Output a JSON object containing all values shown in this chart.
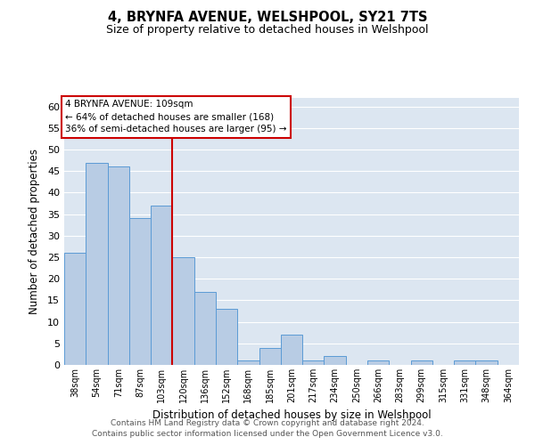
{
  "title": "4, BRYNFA AVENUE, WELSHPOOL, SY21 7TS",
  "subtitle": "Size of property relative to detached houses in Welshpool",
  "xlabel": "Distribution of detached houses by size in Welshpool",
  "ylabel": "Number of detached properties",
  "categories": [
    "38sqm",
    "54sqm",
    "71sqm",
    "87sqm",
    "103sqm",
    "120sqm",
    "136sqm",
    "152sqm",
    "168sqm",
    "185sqm",
    "201sqm",
    "217sqm",
    "234sqm",
    "250sqm",
    "266sqm",
    "283sqm",
    "299sqm",
    "315sqm",
    "331sqm",
    "348sqm",
    "364sqm"
  ],
  "values": [
    26,
    47,
    46,
    34,
    37,
    25,
    17,
    13,
    1,
    4,
    7,
    1,
    2,
    0,
    1,
    0,
    1,
    0,
    1,
    1,
    0
  ],
  "bar_color": "#b8cce4",
  "bar_edge_color": "#5b9bd5",
  "background_color": "#ffffff",
  "plot_bg_color": "#dce6f1",
  "grid_color": "#ffffff",
  "annotation_line1": "4 BRYNFA AVENUE: 109sqm",
  "annotation_line2": "← 64% of detached houses are smaller (168)",
  "annotation_line3": "36% of semi-detached houses are larger (95) →",
  "annotation_box_edge_color": "#cc0000",
  "ref_line_color": "#cc0000",
  "ylim": [
    0,
    62
  ],
  "yticks": [
    0,
    5,
    10,
    15,
    20,
    25,
    30,
    35,
    40,
    45,
    50,
    55,
    60
  ],
  "footer_line1": "Contains HM Land Registry data © Crown copyright and database right 2024.",
  "footer_line2": "Contains public sector information licensed under the Open Government Licence v3.0."
}
